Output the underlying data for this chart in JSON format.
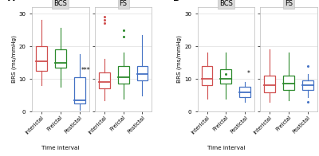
{
  "panel_A_BCS": {
    "Interictal": {
      "q1": 12.5,
      "median": 15.5,
      "q3": 20.0,
      "whisker_low": 8.0,
      "whisker_high": 28.0,
      "outliers": []
    },
    "Preictal": {
      "q1": 13.5,
      "median": 15.0,
      "q3": 19.0,
      "whisker_low": 7.5,
      "whisker_high": 25.5,
      "outliers": []
    },
    "Postictal": {
      "q1": 2.5,
      "median": 3.5,
      "q3": 10.5,
      "whisker_low": 0.5,
      "whisker_high": 17.5,
      "outliers": []
    }
  },
  "panel_A_FS": {
    "Interictal": {
      "q1": 7.0,
      "median": 9.0,
      "q3": 12.0,
      "whisker_low": 3.5,
      "whisker_high": 16.0,
      "outliers": [
        29.0,
        28.0,
        27.0
      ]
    },
    "Preictal": {
      "q1": 8.5,
      "median": 10.5,
      "q3": 14.0,
      "whisker_low": 4.0,
      "whisker_high": 18.0,
      "outliers": [
        25.0,
        23.0
      ]
    },
    "Postictal": {
      "q1": 9.5,
      "median": 11.5,
      "q3": 14.0,
      "whisker_low": 5.0,
      "whisker_high": 23.5,
      "outliers": []
    }
  },
  "panel_B_BCS": {
    "Interictal": {
      "q1": 8.0,
      "median": 10.0,
      "q3": 14.0,
      "whisker_low": 4.0,
      "whisker_high": 18.0,
      "outliers": []
    },
    "Preictal": {
      "q1": 8.5,
      "median": 10.0,
      "q3": 13.0,
      "whisker_low": 4.0,
      "whisker_high": 18.0,
      "outliers": [
        11.5
      ]
    },
    "Postictal": {
      "q1": 4.5,
      "median": 6.0,
      "q3": 7.5,
      "whisker_low": 3.0,
      "whisker_high": 9.0,
      "outliers": []
    }
  },
  "panel_B_FS": {
    "Interictal": {
      "q1": 6.0,
      "median": 8.0,
      "q3": 11.0,
      "whisker_low": 3.0,
      "whisker_high": 19.0,
      "outliers": []
    },
    "Preictal": {
      "q1": 6.5,
      "median": 8.5,
      "q3": 11.0,
      "whisker_low": 3.5,
      "whisker_high": 18.0,
      "outliers": []
    },
    "Postictal": {
      "q1": 6.5,
      "median": 8.0,
      "q3": 9.5,
      "whisker_low": 4.5,
      "whisker_high": 11.5,
      "outliers": [
        14.0,
        3.0
      ]
    }
  },
  "edge_colors": [
    "#D05050",
    "#2E8B2E",
    "#4472C4"
  ],
  "ylim": [
    0,
    32
  ],
  "yticks": [
    0,
    10,
    20,
    30
  ],
  "xlabel": "Time interval",
  "ylabel": "BRS (ms/mmHg)",
  "categories": [
    "Interictal",
    "Preictal",
    "Postictal"
  ],
  "panel_labels": [
    "A",
    "B"
  ],
  "facet_labels": [
    "BCS",
    "FS"
  ],
  "significance_A_BCS": "***",
  "significance_B_BCS": "*",
  "facet_bg": "#D8D8D8",
  "plot_bg": "#FFFFFF",
  "fig_bg": "#FFFFFF",
  "grid_color": "#E8E8E8",
  "border_color": "#BBBBBB"
}
